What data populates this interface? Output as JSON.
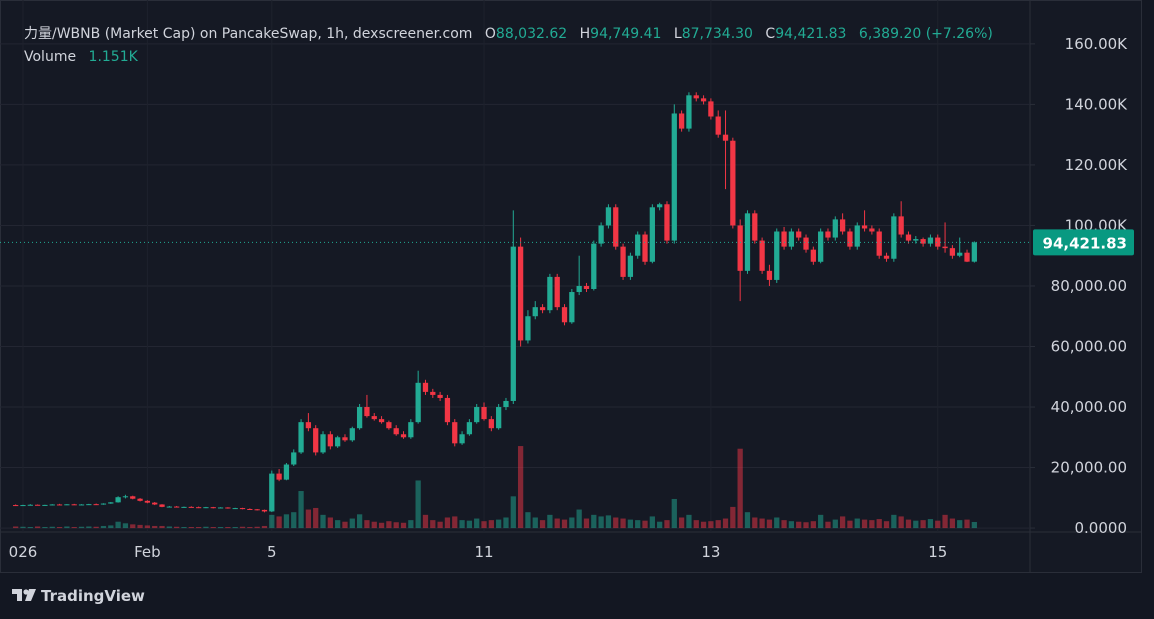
{
  "chart_data": {
    "type": "candlestick",
    "title": "力量/WBNB (Market Cap) on PancakeSwap, 1h, dexscreener.com",
    "ohlc_legend": {
      "open_tag": "O",
      "open": {
        "value": 88032.62,
        "label": "88,032.62"
      },
      "high_tag": "H",
      "high": {
        "value": 94749.41,
        "label": "94,749.41"
      },
      "low_tag": "L",
      "low": {
        "value": 87734.3,
        "label": "87,734.30"
      },
      "close_tag": "C",
      "close": {
        "value": 94421.83,
        "label": "94,421.83"
      },
      "change": "6,389.20 (+7.26%)"
    },
    "volume_legend": {
      "name": "Volume",
      "value": {
        "value": 1151,
        "label": "1.151K"
      }
    },
    "last_price": {
      "value": 94421.83,
      "label": "94,421.83"
    },
    "branding": "TradingView",
    "up_color": "#22ab94",
    "down_color": "#f23645",
    "ylim": [
      -1300,
      174500
    ],
    "yticks": [
      {
        "value": 0,
        "label": "0.0000"
      },
      {
        "value": 20000,
        "label": "20,000.00"
      },
      {
        "value": 40000,
        "label": "40,000.00"
      },
      {
        "value": 60000,
        "label": "60,000.00"
      },
      {
        "value": 80000,
        "label": "80,000.00"
      },
      {
        "value": 100000,
        "label": "100.00K"
      },
      {
        "value": 120000,
        "label": "120.00K"
      },
      {
        "value": 140000,
        "label": "140.00K"
      },
      {
        "value": 160000,
        "label": "160.00K"
      }
    ],
    "grid": true,
    "categories": [
      null,
      "026",
      null,
      null,
      null,
      null,
      null,
      null,
      null,
      null,
      null,
      null,
      null,
      null,
      null,
      null,
      null,
      null,
      "Feb",
      null,
      null,
      null,
      null,
      null,
      null,
      null,
      null,
      null,
      null,
      null,
      null,
      null,
      null,
      null,
      null,
      "5",
      null,
      null,
      null,
      null,
      null,
      null,
      null,
      null,
      null,
      null,
      null,
      null,
      null,
      null,
      null,
      null,
      null,
      null,
      null,
      null,
      null,
      null,
      null,
      null,
      null,
      null,
      null,
      null,
      "11",
      null,
      null,
      null,
      null,
      null,
      null,
      null,
      null,
      null,
      null,
      null,
      null,
      null,
      null,
      null,
      null,
      null,
      null,
      null,
      null,
      null,
      null,
      null,
      null,
      null,
      null,
      null,
      null,
      null,
      null,
      "13",
      null,
      null,
      null,
      null,
      null,
      null,
      null,
      null,
      null,
      null,
      null,
      null,
      null,
      null,
      null,
      null,
      null,
      null,
      null,
      null,
      null,
      null,
      null,
      null,
      null,
      null,
      null,
      null,
      null,
      null,
      "15",
      null,
      null,
      null,
      null,
      null
    ],
    "candles": [
      [
        7600,
        7800,
        7400,
        7500,
        300
      ],
      [
        7500,
        7700,
        7300,
        7600,
        250
      ],
      [
        7600,
        7900,
        7500,
        7700,
        200
      ],
      [
        7700,
        7800,
        7500,
        7550,
        300
      ],
      [
        7550,
        7700,
        7400,
        7650,
        200
      ],
      [
        7650,
        7900,
        7500,
        7800,
        250
      ],
      [
        7800,
        8000,
        7600,
        7700,
        200
      ],
      [
        7700,
        7900,
        7600,
        7850,
        300
      ],
      [
        7850,
        8000,
        7700,
        7750,
        200
      ],
      [
        7750,
        7900,
        7600,
        7800,
        250
      ],
      [
        7800,
        8000,
        7700,
        7900,
        300
      ],
      [
        7900,
        8100,
        7700,
        7800,
        250
      ],
      [
        7800,
        8200,
        7700,
        8100,
        400
      ],
      [
        8100,
        8600,
        8000,
        8500,
        500
      ],
      [
        8500,
        10500,
        8400,
        10200,
        1200
      ],
      [
        10200,
        11000,
        9800,
        10500,
        900
      ],
      [
        10500,
        10700,
        9500,
        9700,
        700
      ],
      [
        9700,
        9900,
        8800,
        9000,
        600
      ],
      [
        9000,
        9200,
        8200,
        8400,
        500
      ],
      [
        8400,
        8600,
        7600,
        7800,
        400
      ],
      [
        7800,
        7900,
        6900,
        7000,
        400
      ],
      [
        7000,
        7300,
        6800,
        7100,
        300
      ],
      [
        7100,
        7300,
        6800,
        6900,
        250
      ],
      [
        6900,
        7100,
        6700,
        7000,
        200
      ],
      [
        7000,
        7200,
        6800,
        6900,
        200
      ],
      [
        6900,
        7100,
        6600,
        6800,
        200
      ],
      [
        6800,
        7000,
        6600,
        6900,
        250
      ],
      [
        6900,
        7000,
        6500,
        6700,
        200
      ],
      [
        6700,
        6900,
        6500,
        6800,
        200
      ],
      [
        6800,
        6900,
        6400,
        6500,
        200
      ],
      [
        6500,
        6700,
        6300,
        6600,
        200
      ],
      [
        6600,
        6700,
        6200,
        6300,
        250
      ],
      [
        6300,
        6500,
        6100,
        6200,
        200
      ],
      [
        6200,
        6300,
        5800,
        6000,
        250
      ],
      [
        6000,
        6100,
        5200,
        5500,
        400
      ],
      [
        5500,
        19000,
        5300,
        18000,
        2500
      ],
      [
        18000,
        19500,
        15500,
        16000,
        2200
      ],
      [
        16000,
        21500,
        15800,
        21000,
        2600
      ],
      [
        21000,
        26000,
        20500,
        25000,
        3000
      ],
      [
        25000,
        36000,
        24500,
        35000,
        7000
      ],
      [
        35000,
        38000,
        32000,
        33000,
        3500
      ],
      [
        33000,
        34000,
        24000,
        25000,
        3800
      ],
      [
        25000,
        32000,
        24500,
        31000,
        2500
      ],
      [
        31000,
        32000,
        26000,
        27000,
        2000
      ],
      [
        27000,
        30500,
        26500,
        30000,
        1500
      ],
      [
        30000,
        31000,
        28500,
        29000,
        1200
      ],
      [
        29000,
        33500,
        28500,
        33000,
        1800
      ],
      [
        33000,
        41000,
        32500,
        40000,
        2600
      ],
      [
        40000,
        44000,
        36500,
        37000,
        1500
      ],
      [
        37000,
        38000,
        35500,
        36000,
        1200
      ],
      [
        36000,
        37000,
        34500,
        35000,
        1000
      ],
      [
        35000,
        35500,
        32500,
        33000,
        1300
      ],
      [
        33000,
        34000,
        30500,
        31000,
        1100
      ],
      [
        31000,
        32000,
        29500,
        30000,
        1000
      ],
      [
        30000,
        36000,
        29500,
        35000,
        1500
      ],
      [
        35000,
        52000,
        34500,
        48000,
        9000
      ],
      [
        48000,
        49000,
        44000,
        45000,
        2500
      ],
      [
        45000,
        46000,
        43000,
        44000,
        1500
      ],
      [
        44000,
        45000,
        42000,
        43000,
        1200
      ],
      [
        43000,
        44000,
        34000,
        35000,
        2000
      ],
      [
        35000,
        36000,
        27000,
        28000,
        2200
      ],
      [
        28000,
        32000,
        27500,
        31000,
        1500
      ],
      [
        31000,
        36000,
        30500,
        35000,
        1400
      ],
      [
        35000,
        41000,
        34500,
        40000,
        1800
      ],
      [
        40000,
        41500,
        35500,
        36000,
        1300
      ],
      [
        36000,
        37000,
        32000,
        33000,
        1500
      ],
      [
        33000,
        41000,
        32500,
        40000,
        1600
      ],
      [
        40000,
        43000,
        39000,
        42000,
        2000
      ],
      [
        42000,
        105000,
        41000,
        93000,
        6000
      ],
      [
        93000,
        96000,
        60000,
        62000,
        15500
      ],
      [
        62000,
        72000,
        61000,
        70000,
        3000
      ],
      [
        70000,
        75000,
        69000,
        73000,
        2000
      ],
      [
        73000,
        74000,
        71000,
        72000,
        1500
      ],
      [
        72000,
        84000,
        71000,
        83000,
        2500
      ],
      [
        83000,
        84000,
        72000,
        73000,
        1800
      ],
      [
        73000,
        74000,
        67000,
        68000,
        1600
      ],
      [
        68000,
        79000,
        67500,
        78000,
        2000
      ],
      [
        78000,
        90000,
        77000,
        80000,
        3500
      ],
      [
        80000,
        81000,
        78000,
        79000,
        1800
      ],
      [
        79000,
        95000,
        78500,
        94000,
        2500
      ],
      [
        94000,
        101000,
        93000,
        100000,
        2200
      ],
      [
        100000,
        107000,
        99000,
        106000,
        2400
      ],
      [
        106000,
        107000,
        92000,
        93000,
        2000
      ],
      [
        93000,
        94000,
        82000,
        83000,
        1800
      ],
      [
        83000,
        91000,
        82000,
        90000,
        1600
      ],
      [
        90000,
        98000,
        89000,
        97000,
        1500
      ],
      [
        97000,
        98000,
        87000,
        88000,
        1400
      ],
      [
        88000,
        107000,
        87500,
        106000,
        2200
      ],
      [
        106000,
        107500,
        105000,
        107000,
        1200
      ],
      [
        107000,
        108000,
        94000,
        95000,
        1500
      ],
      [
        95000,
        140000,
        94000,
        137000,
        5500
      ],
      [
        137000,
        138000,
        131000,
        132000,
        2000
      ],
      [
        132000,
        144000,
        131000,
        143000,
        2500
      ],
      [
        143000,
        144000,
        141000,
        142000,
        1500
      ],
      [
        142000,
        143000,
        140000,
        141000,
        1200
      ],
      [
        141000,
        142000,
        135000,
        136000,
        1300
      ],
      [
        136000,
        138000,
        129000,
        130000,
        1500
      ],
      [
        130000,
        138000,
        112000,
        128000,
        1800
      ],
      [
        128000,
        129000,
        99000,
        100000,
        4000
      ],
      [
        100000,
        102000,
        75000,
        85000,
        15000
      ],
      [
        85000,
        105000,
        84000,
        104000,
        3000
      ],
      [
        104000,
        105000,
        94000,
        95000,
        2000
      ],
      [
        95000,
        96000,
        84000,
        85000,
        1800
      ],
      [
        85000,
        87000,
        80000,
        82000,
        1600
      ],
      [
        82000,
        99000,
        81000,
        98000,
        2000
      ],
      [
        98000,
        99500,
        92000,
        93000,
        1500
      ],
      [
        93000,
        99000,
        92000,
        98000,
        1300
      ],
      [
        98000,
        99000,
        95000,
        96000,
        1200
      ],
      [
        96000,
        97000,
        91000,
        92000,
        1100
      ],
      [
        92000,
        93000,
        87000,
        88000,
        1300
      ],
      [
        88000,
        99000,
        87500,
        98000,
        2500
      ],
      [
        98000,
        99000,
        95000,
        96000,
        1200
      ],
      [
        96000,
        103000,
        95000,
        102000,
        1600
      ],
      [
        102000,
        104000,
        97000,
        98000,
        2200
      ],
      [
        98000,
        99000,
        92000,
        93000,
        1400
      ],
      [
        93000,
        101000,
        92000,
        100000,
        1800
      ],
      [
        100000,
        105000,
        98000,
        99000,
        1600
      ],
      [
        99000,
        100000,
        97000,
        98000,
        1500
      ],
      [
        98000,
        99000,
        89000,
        90000,
        1700
      ],
      [
        90000,
        91000,
        88000,
        89000,
        1300
      ],
      [
        89000,
        104000,
        88000,
        103000,
        2500
      ],
      [
        103000,
        108000,
        96000,
        97000,
        2200
      ],
      [
        97000,
        98000,
        94000,
        95000,
        1600
      ],
      [
        95000,
        96500,
        94000,
        95500,
        1400
      ],
      [
        95500,
        96000,
        93000,
        94000,
        1500
      ],
      [
        94000,
        97000,
        93000,
        96000,
        1700
      ],
      [
        96000,
        97000,
        92000,
        93000,
        1400
      ],
      [
        93000,
        101000,
        91000,
        92500,
        2500
      ],
      [
        92500,
        93500,
        89000,
        90000,
        1800
      ],
      [
        90000,
        96000,
        89500,
        91000,
        1500
      ],
      [
        91000,
        92000,
        87900,
        88032.62,
        1600
      ],
      [
        88032.62,
        94749.41,
        87734.3,
        94421.83,
        1151
      ]
    ]
  }
}
